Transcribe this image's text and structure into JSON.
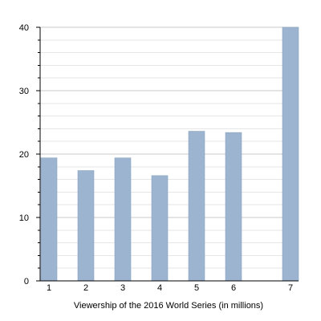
{
  "chart_data": {
    "type": "bar",
    "title": "",
    "xlabel": "Viewership of the 2016 World Series (in millions)",
    "ylabel": "",
    "categories": [
      "1",
      "2",
      "3",
      "4",
      "5",
      "6",
      "7"
    ],
    "values": [
      19.4,
      17.4,
      19.4,
      16.6,
      23.6,
      23.4,
      40.0
    ],
    "ylim": [
      0,
      40
    ],
    "yticks": [
      "0",
      "10",
      "20",
      "30",
      "40"
    ],
    "grid": true,
    "legend": "none",
    "bar_color": "#9cb4cf",
    "bar_edge_color": "#8aa3bf",
    "grid_major_color": "#c8c8c8",
    "grid_minor_color": "#e6e6e6"
  }
}
